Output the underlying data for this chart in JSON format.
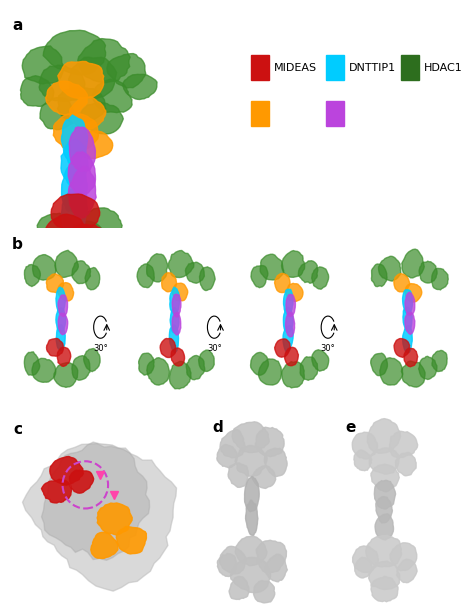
{
  "panel_labels": [
    "a",
    "b",
    "c",
    "d",
    "e"
  ],
  "panel_label_fontsize": 11,
  "panel_label_fontweight": "bold",
  "background_color": "#ffffff",
  "legend": {
    "col1_colors": [
      "#cc1111",
      "#ff9900"
    ],
    "col2_colors": [
      "#00ccff",
      "#bb44dd"
    ],
    "col3_colors": [
      "#2d6e1e"
    ],
    "col1_label": "MIDEAS",
    "col2_label": "DNTTIP1",
    "col3_label": "HDAC1",
    "fontsize": 8
  },
  "rotation_label": "30°",
  "figure_width": 4.74,
  "figure_height": 6.15,
  "dpi": 100
}
